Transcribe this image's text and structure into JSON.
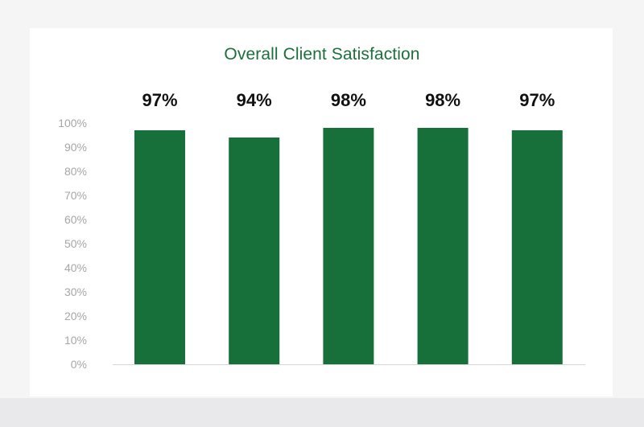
{
  "colors": {
    "bar": "#17703a",
    "title": "#1c6f3a",
    "tick_label": "#a6a6a6",
    "baseline": "#d6d6d6"
  },
  "chart_data": {
    "type": "bar",
    "title": "Overall Client Satisfaction",
    "xlabel": "",
    "ylabel": "",
    "categories": [
      "",
      "",
      "",
      "",
      ""
    ],
    "values": [
      97,
      94,
      98,
      98,
      97
    ],
    "data_labels": [
      "97%",
      "94%",
      "98%",
      "98%",
      "97%"
    ],
    "ylim": [
      0,
      100
    ],
    "yticks": [
      0,
      10,
      20,
      30,
      40,
      50,
      60,
      70,
      80,
      90,
      100
    ],
    "ytick_labels": [
      "0%",
      "10%",
      "20%",
      "30%",
      "40%",
      "50%",
      "60%",
      "70%",
      "80%",
      "90%",
      "100%"
    ],
    "grid": false,
    "legend": "none"
  }
}
